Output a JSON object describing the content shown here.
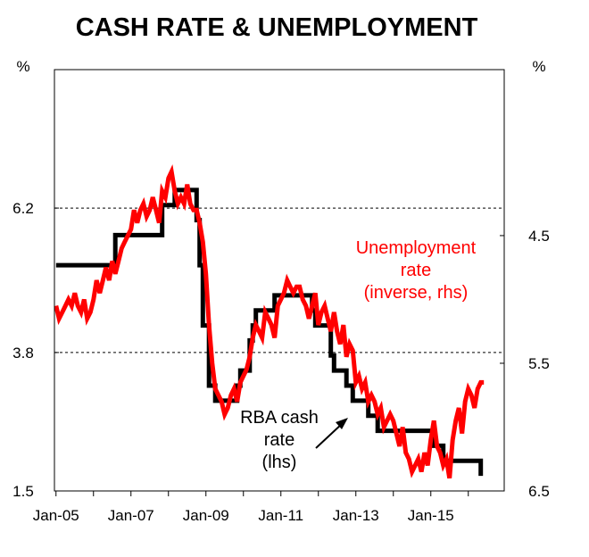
{
  "chart_data": {
    "type": "line",
    "title": "CASH RATE & UNEMPLOYMENT",
    "left_unit": "%",
    "right_unit": "%",
    "x_ticks": [
      "Jan-05",
      "Jan-07",
      "Jan-09",
      "Jan-11",
      "Jan-13",
      "Jan-15"
    ],
    "xlim": [
      "2005-01",
      "2016-12"
    ],
    "left_axis": {
      "ticks": [
        "6.2",
        "3.8",
        "1.5"
      ],
      "ylim": [
        1.5,
        8.5
      ]
    },
    "right_axis": {
      "ticks": [
        "4.5",
        "5.5",
        "6.5"
      ],
      "ylim": [
        3.2,
        6.5
      ],
      "inverted": true
    },
    "grid": {
      "horizontal_dashed_at_left_values": [
        6.2,
        3.8
      ]
    },
    "annotations": {
      "unemployment_label": [
        "Unemployment",
        "rate",
        "(inverse, rhs)"
      ],
      "cash_label": [
        "RBA cash",
        "rate",
        "(lhs)"
      ]
    },
    "colors": {
      "cash_rate": "#000000",
      "unemployment": "#ff0000",
      "grid": "#000000"
    },
    "series": [
      {
        "key": "cash_rate",
        "axis": "left",
        "points": [
          [
            "2005-01",
            5.25
          ],
          [
            "2006-05",
            5.25
          ],
          [
            "2006-08",
            5.75
          ],
          [
            "2007-08",
            5.75
          ],
          [
            "2007-11",
            6.25
          ],
          [
            "2008-03",
            6.5
          ],
          [
            "2008-09",
            6.5
          ],
          [
            "2008-10",
            6.0
          ],
          [
            "2008-11",
            5.25
          ],
          [
            "2008-12",
            4.25
          ],
          [
            "2009-02",
            3.25
          ],
          [
            "2009-04",
            3.0
          ],
          [
            "2009-10",
            3.0
          ],
          [
            "2009-11",
            3.25
          ],
          [
            "2009-12",
            3.5
          ],
          [
            "2010-03",
            4.0
          ],
          [
            "2010-04",
            4.25
          ],
          [
            "2010-05",
            4.5
          ],
          [
            "2010-11",
            4.75
          ],
          [
            "2011-10",
            4.75
          ],
          [
            "2011-11",
            4.5
          ],
          [
            "2011-12",
            4.25
          ],
          [
            "2012-05",
            3.75
          ],
          [
            "2012-06",
            3.5
          ],
          [
            "2012-10",
            3.25
          ],
          [
            "2012-12",
            3.0
          ],
          [
            "2013-05",
            2.75
          ],
          [
            "2013-08",
            2.5
          ],
          [
            "2015-02",
            2.25
          ],
          [
            "2015-05",
            2.0
          ],
          [
            "2016-04",
            2.0
          ],
          [
            "2016-05",
            1.75
          ]
        ]
      },
      {
        "key": "unemployment",
        "axis": "right",
        "points": [
          [
            "2005-01",
            5.05
          ],
          [
            "2005-02",
            5.15
          ],
          [
            "2005-03",
            5.1
          ],
          [
            "2005-04",
            5.05
          ],
          [
            "2005-05",
            5.0
          ],
          [
            "2005-06",
            5.05
          ],
          [
            "2005-07",
            4.95
          ],
          [
            "2005-08",
            5.05
          ],
          [
            "2005-09",
            5.1
          ],
          [
            "2005-10",
            5.0
          ],
          [
            "2005-11",
            5.15
          ],
          [
            "2005-12",
            5.1
          ],
          [
            "2006-01",
            5.0
          ],
          [
            "2006-02",
            4.85
          ],
          [
            "2006-03",
            4.95
          ],
          [
            "2006-04",
            4.85
          ],
          [
            "2006-05",
            4.75
          ],
          [
            "2006-06",
            4.85
          ],
          [
            "2006-07",
            4.7
          ],
          [
            "2006-08",
            4.8
          ],
          [
            "2006-09",
            4.7
          ],
          [
            "2006-10",
            4.6
          ],
          [
            "2006-11",
            4.55
          ],
          [
            "2006-12",
            4.5
          ],
          [
            "2007-01",
            4.45
          ],
          [
            "2007-02",
            4.3
          ],
          [
            "2007-03",
            4.4
          ],
          [
            "2007-04",
            4.3
          ],
          [
            "2007-05",
            4.25
          ],
          [
            "2007-06",
            4.35
          ],
          [
            "2007-07",
            4.3
          ],
          [
            "2007-08",
            4.2
          ],
          [
            "2007-09",
            4.3
          ],
          [
            "2007-10",
            4.4
          ],
          [
            "2007-11",
            4.15
          ],
          [
            "2007-12",
            4.2
          ],
          [
            "2008-01",
            4.05
          ],
          [
            "2008-02",
            4.0
          ],
          [
            "2008-03",
            4.15
          ],
          [
            "2008-04",
            4.25
          ],
          [
            "2008-05",
            4.2
          ],
          [
            "2008-06",
            4.25
          ],
          [
            "2008-07",
            4.1
          ],
          [
            "2008-08",
            4.25
          ],
          [
            "2008-09",
            4.3
          ],
          [
            "2008-10",
            4.3
          ],
          [
            "2008-11",
            4.4
          ],
          [
            "2008-12",
            4.55
          ],
          [
            "2009-01",
            4.8
          ],
          [
            "2009-02",
            5.2
          ],
          [
            "2009-03",
            5.5
          ],
          [
            "2009-04",
            5.7
          ],
          [
            "2009-05",
            5.75
          ],
          [
            "2009-06",
            5.8
          ],
          [
            "2009-07",
            5.9
          ],
          [
            "2009-08",
            5.85
          ],
          [
            "2009-09",
            5.75
          ],
          [
            "2009-10",
            5.7
          ],
          [
            "2009-11",
            5.8
          ],
          [
            "2009-12",
            5.65
          ],
          [
            "2010-01",
            5.6
          ],
          [
            "2010-02",
            5.55
          ],
          [
            "2010-03",
            5.45
          ],
          [
            "2010-04",
            5.3
          ],
          [
            "2010-05",
            5.2
          ],
          [
            "2010-06",
            5.25
          ],
          [
            "2010-07",
            5.3
          ],
          [
            "2010-08",
            5.1
          ],
          [
            "2010-09",
            5.15
          ],
          [
            "2010-10",
            5.2
          ],
          [
            "2010-11",
            5.3
          ],
          [
            "2010-12",
            5.05
          ],
          [
            "2011-01",
            5.0
          ],
          [
            "2011-02",
            4.95
          ],
          [
            "2011-03",
            4.85
          ],
          [
            "2011-04",
            4.9
          ],
          [
            "2011-05",
            4.95
          ],
          [
            "2011-06",
            4.9
          ],
          [
            "2011-07",
            4.9
          ],
          [
            "2011-08",
            5.0
          ],
          [
            "2011-09",
            5.05
          ],
          [
            "2011-10",
            5.15
          ],
          [
            "2011-11",
            5.05
          ],
          [
            "2011-12",
            4.95
          ],
          [
            "2012-01",
            5.2
          ],
          [
            "2012-02",
            5.1
          ],
          [
            "2012-03",
            5.05
          ],
          [
            "2012-04",
            5.15
          ],
          [
            "2012-05",
            5.25
          ],
          [
            "2012-06",
            5.1
          ],
          [
            "2012-07",
            5.25
          ],
          [
            "2012-08",
            5.35
          ],
          [
            "2012-09",
            5.2
          ],
          [
            "2012-10",
            5.45
          ],
          [
            "2012-11",
            5.35
          ],
          [
            "2012-12",
            5.4
          ],
          [
            "2013-01",
            5.65
          ],
          [
            "2013-02",
            5.6
          ],
          [
            "2013-03",
            5.7
          ],
          [
            "2013-04",
            5.65
          ],
          [
            "2013-05",
            5.8
          ],
          [
            "2013-06",
            5.75
          ],
          [
            "2013-07",
            5.8
          ],
          [
            "2013-08",
            5.9
          ],
          [
            "2013-09",
            5.85
          ],
          [
            "2013-10",
            6.0
          ],
          [
            "2013-11",
            5.95
          ],
          [
            "2013-12",
            5.9
          ],
          [
            "2014-01",
            5.95
          ],
          [
            "2014-02",
            6.05
          ],
          [
            "2014-03",
            6.15
          ],
          [
            "2014-04",
            6.0
          ],
          [
            "2014-05",
            6.2
          ],
          [
            "2014-06",
            6.25
          ],
          [
            "2014-07",
            6.35
          ],
          [
            "2014-08",
            6.3
          ],
          [
            "2014-09",
            6.25
          ],
          [
            "2014-10",
            6.35
          ],
          [
            "2014-11",
            6.2
          ],
          [
            "2014-12",
            6.3
          ],
          [
            "2015-01",
            6.1
          ],
          [
            "2015-02",
            5.95
          ],
          [
            "2015-03",
            6.15
          ],
          [
            "2015-04",
            6.2
          ],
          [
            "2015-05",
            6.3
          ],
          [
            "2015-06",
            6.25
          ],
          [
            "2015-07",
            6.4
          ],
          [
            "2015-08",
            6.1
          ],
          [
            "2015-09",
            5.95
          ],
          [
            "2015-10",
            5.85
          ],
          [
            "2015-11",
            6.05
          ],
          [
            "2015-12",
            5.8
          ],
          [
            "2016-01",
            5.7
          ],
          [
            "2016-02",
            5.75
          ],
          [
            "2016-03",
            5.85
          ],
          [
            "2016-04",
            5.7
          ],
          [
            "2016-05",
            5.65
          ],
          [
            "2016-06",
            5.65
          ]
        ]
      }
    ]
  }
}
